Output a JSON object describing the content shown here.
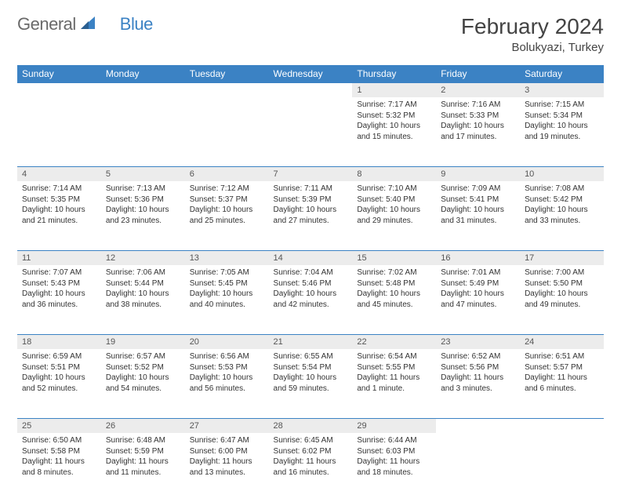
{
  "brand": {
    "part1": "General",
    "part2": "Blue"
  },
  "title": "February 2024",
  "location": "Bolukyazi, Turkey",
  "colors": {
    "header_bg": "#3b82c4",
    "header_text": "#ffffff",
    "daynum_bg": "#ececec",
    "border": "#3b82c4",
    "logo_gray": "#6a6a6a",
    "logo_blue": "#3b82c4"
  },
  "day_headers": [
    "Sunday",
    "Monday",
    "Tuesday",
    "Wednesday",
    "Thursday",
    "Friday",
    "Saturday"
  ],
  "weeks": [
    [
      {
        "blank": true
      },
      {
        "blank": true
      },
      {
        "blank": true
      },
      {
        "blank": true
      },
      {
        "num": "1",
        "sunrise": "Sunrise: 7:17 AM",
        "sunset": "Sunset: 5:32 PM",
        "daylight": "Daylight: 10 hours and 15 minutes."
      },
      {
        "num": "2",
        "sunrise": "Sunrise: 7:16 AM",
        "sunset": "Sunset: 5:33 PM",
        "daylight": "Daylight: 10 hours and 17 minutes."
      },
      {
        "num": "3",
        "sunrise": "Sunrise: 7:15 AM",
        "sunset": "Sunset: 5:34 PM",
        "daylight": "Daylight: 10 hours and 19 minutes."
      }
    ],
    [
      {
        "num": "4",
        "sunrise": "Sunrise: 7:14 AM",
        "sunset": "Sunset: 5:35 PM",
        "daylight": "Daylight: 10 hours and 21 minutes."
      },
      {
        "num": "5",
        "sunrise": "Sunrise: 7:13 AM",
        "sunset": "Sunset: 5:36 PM",
        "daylight": "Daylight: 10 hours and 23 minutes."
      },
      {
        "num": "6",
        "sunrise": "Sunrise: 7:12 AM",
        "sunset": "Sunset: 5:37 PM",
        "daylight": "Daylight: 10 hours and 25 minutes."
      },
      {
        "num": "7",
        "sunrise": "Sunrise: 7:11 AM",
        "sunset": "Sunset: 5:39 PM",
        "daylight": "Daylight: 10 hours and 27 minutes."
      },
      {
        "num": "8",
        "sunrise": "Sunrise: 7:10 AM",
        "sunset": "Sunset: 5:40 PM",
        "daylight": "Daylight: 10 hours and 29 minutes."
      },
      {
        "num": "9",
        "sunrise": "Sunrise: 7:09 AM",
        "sunset": "Sunset: 5:41 PM",
        "daylight": "Daylight: 10 hours and 31 minutes."
      },
      {
        "num": "10",
        "sunrise": "Sunrise: 7:08 AM",
        "sunset": "Sunset: 5:42 PM",
        "daylight": "Daylight: 10 hours and 33 minutes."
      }
    ],
    [
      {
        "num": "11",
        "sunrise": "Sunrise: 7:07 AM",
        "sunset": "Sunset: 5:43 PM",
        "daylight": "Daylight: 10 hours and 36 minutes."
      },
      {
        "num": "12",
        "sunrise": "Sunrise: 7:06 AM",
        "sunset": "Sunset: 5:44 PM",
        "daylight": "Daylight: 10 hours and 38 minutes."
      },
      {
        "num": "13",
        "sunrise": "Sunrise: 7:05 AM",
        "sunset": "Sunset: 5:45 PM",
        "daylight": "Daylight: 10 hours and 40 minutes."
      },
      {
        "num": "14",
        "sunrise": "Sunrise: 7:04 AM",
        "sunset": "Sunset: 5:46 PM",
        "daylight": "Daylight: 10 hours and 42 minutes."
      },
      {
        "num": "15",
        "sunrise": "Sunrise: 7:02 AM",
        "sunset": "Sunset: 5:48 PM",
        "daylight": "Daylight: 10 hours and 45 minutes."
      },
      {
        "num": "16",
        "sunrise": "Sunrise: 7:01 AM",
        "sunset": "Sunset: 5:49 PM",
        "daylight": "Daylight: 10 hours and 47 minutes."
      },
      {
        "num": "17",
        "sunrise": "Sunrise: 7:00 AM",
        "sunset": "Sunset: 5:50 PM",
        "daylight": "Daylight: 10 hours and 49 minutes."
      }
    ],
    [
      {
        "num": "18",
        "sunrise": "Sunrise: 6:59 AM",
        "sunset": "Sunset: 5:51 PM",
        "daylight": "Daylight: 10 hours and 52 minutes."
      },
      {
        "num": "19",
        "sunrise": "Sunrise: 6:57 AM",
        "sunset": "Sunset: 5:52 PM",
        "daylight": "Daylight: 10 hours and 54 minutes."
      },
      {
        "num": "20",
        "sunrise": "Sunrise: 6:56 AM",
        "sunset": "Sunset: 5:53 PM",
        "daylight": "Daylight: 10 hours and 56 minutes."
      },
      {
        "num": "21",
        "sunrise": "Sunrise: 6:55 AM",
        "sunset": "Sunset: 5:54 PM",
        "daylight": "Daylight: 10 hours and 59 minutes."
      },
      {
        "num": "22",
        "sunrise": "Sunrise: 6:54 AM",
        "sunset": "Sunset: 5:55 PM",
        "daylight": "Daylight: 11 hours and 1 minute."
      },
      {
        "num": "23",
        "sunrise": "Sunrise: 6:52 AM",
        "sunset": "Sunset: 5:56 PM",
        "daylight": "Daylight: 11 hours and 3 minutes."
      },
      {
        "num": "24",
        "sunrise": "Sunrise: 6:51 AM",
        "sunset": "Sunset: 5:57 PM",
        "daylight": "Daylight: 11 hours and 6 minutes."
      }
    ],
    [
      {
        "num": "25",
        "sunrise": "Sunrise: 6:50 AM",
        "sunset": "Sunset: 5:58 PM",
        "daylight": "Daylight: 11 hours and 8 minutes."
      },
      {
        "num": "26",
        "sunrise": "Sunrise: 6:48 AM",
        "sunset": "Sunset: 5:59 PM",
        "daylight": "Daylight: 11 hours and 11 minutes."
      },
      {
        "num": "27",
        "sunrise": "Sunrise: 6:47 AM",
        "sunset": "Sunset: 6:00 PM",
        "daylight": "Daylight: 11 hours and 13 minutes."
      },
      {
        "num": "28",
        "sunrise": "Sunrise: 6:45 AM",
        "sunset": "Sunset: 6:02 PM",
        "daylight": "Daylight: 11 hours and 16 minutes."
      },
      {
        "num": "29",
        "sunrise": "Sunrise: 6:44 AM",
        "sunset": "Sunset: 6:03 PM",
        "daylight": "Daylight: 11 hours and 18 minutes."
      },
      {
        "blank": true
      },
      {
        "blank": true
      }
    ]
  ]
}
